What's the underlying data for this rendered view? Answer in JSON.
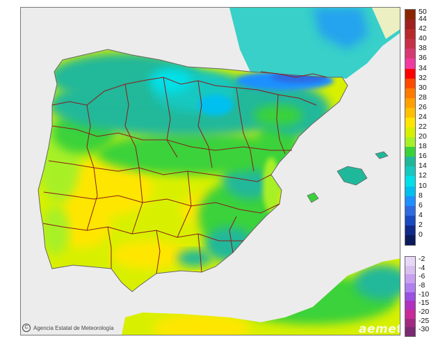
{
  "map": {
    "credit_text": "Agencia Estatal de Meteorología",
    "logo_text": "aemet",
    "colors": {
      "sea": "#ececec",
      "border_line": "#8b1a1a",
      "coast_line": "#666666"
    }
  },
  "legend": {
    "upper_scale": [
      {
        "label": "50",
        "color": "#8b2500"
      },
      {
        "label": "44",
        "color": "#a02020"
      },
      {
        "label": "42",
        "color": "#b82a2a"
      },
      {
        "label": "40",
        "color": "#c8304a"
      },
      {
        "label": "38",
        "color": "#d63a72"
      },
      {
        "label": "36",
        "color": "#f03aa0"
      },
      {
        "label": "34",
        "color": "#ff0000"
      },
      {
        "label": "32",
        "color": "#ff4a00"
      },
      {
        "label": "30",
        "color": "#ff7a00"
      },
      {
        "label": "28",
        "color": "#ffa000"
      },
      {
        "label": "26",
        "color": "#ffc000"
      },
      {
        "label": "24",
        "color": "#ffe600"
      },
      {
        "label": "22",
        "color": "#d8f000"
      },
      {
        "label": "20",
        "color": "#a8f028"
      },
      {
        "label": "18",
        "color": "#3ad23a"
      },
      {
        "label": "16",
        "color": "#20b89a"
      },
      {
        "label": "14",
        "color": "#18c8c0"
      },
      {
        "label": "12",
        "color": "#00e0e8"
      },
      {
        "label": "10",
        "color": "#00c0f0"
      },
      {
        "label": "8",
        "color": "#1e90ff"
      },
      {
        "label": "6",
        "color": "#2e6ae0"
      },
      {
        "label": "4",
        "color": "#1a4ac0"
      },
      {
        "label": "2",
        "color": "#102a8a"
      },
      {
        "label": "0",
        "color": "#0a1a5a"
      }
    ],
    "lower_scale": [
      {
        "label": "-2",
        "color": "#e8d8f8"
      },
      {
        "label": "-4",
        "color": "#d8c0f0"
      },
      {
        "label": "-6",
        "color": "#c8a0f0"
      },
      {
        "label": "-8",
        "color": "#b080f0"
      },
      {
        "label": "-10",
        "color": "#9a50e0"
      },
      {
        "label": "-15",
        "color": "#b030c0"
      },
      {
        "label": "-20",
        "color": "#c82a9a"
      },
      {
        "label": "-25",
        "color": "#a02a80"
      },
      {
        "label": "-30",
        "color": "#7a2a70"
      }
    ]
  }
}
